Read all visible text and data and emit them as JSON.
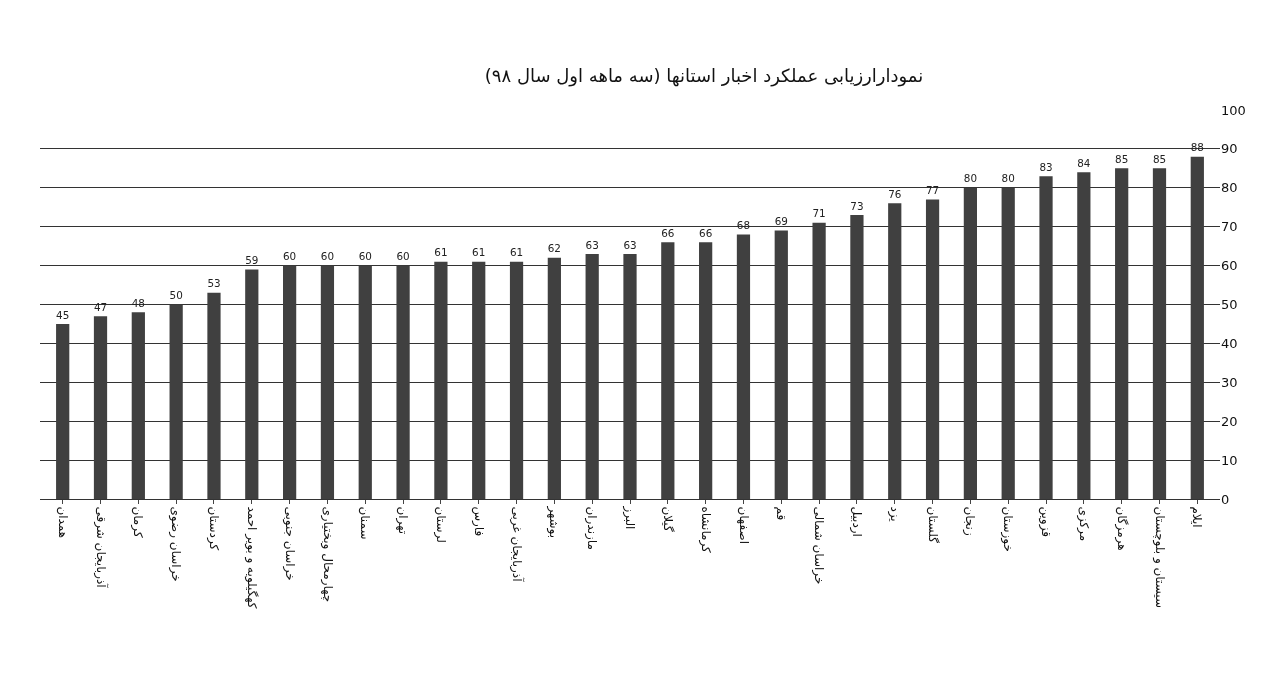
{
  "chart_data": {
    "type": "bar",
    "title": "نمودارارزیابی عملکرد اخبار استانها (سه ماهه اول سال ۹۸)",
    "categories": [
      "همدان",
      "آذربایجان شرقی",
      "کرمان",
      "خراسان رضوی",
      "کردستان",
      "کهگیلویه و بویر احمد",
      "خراسان جنوبی",
      "چهارمحال وبختیاری",
      "سمنان",
      "تهران",
      "لرستان",
      "فارس",
      "آذربایجان غربی",
      "بوشهر",
      "مازندران",
      "البرز",
      "گیلان",
      "کرمانشاه",
      "اصفهان",
      "قم",
      "خراسان شمالی",
      "اردبیل",
      "یزد",
      "گلستان",
      "زنجان",
      "خوزستان",
      "قزوین",
      "مرکزی",
      "هرمزگان",
      "سیستان و بلوچستان",
      "ایلام"
    ],
    "values": [
      45,
      47,
      48,
      50,
      53,
      59,
      60,
      60,
      60,
      60,
      61,
      61,
      61,
      62,
      63,
      63,
      66,
      66,
      68,
      69,
      71,
      73,
      76,
      77,
      80,
      80,
      83,
      84,
      85,
      85,
      88
    ],
    "color": "#404040",
    "ylim": [
      0,
      100
    ],
    "yticks": [
      0,
      10,
      20,
      30,
      40,
      50,
      60,
      70,
      80,
      90,
      100
    ],
    "grid": "y",
    "data_labels": true
  }
}
